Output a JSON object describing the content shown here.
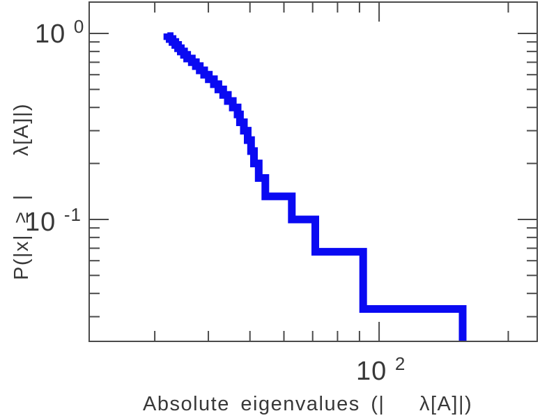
{
  "chart_data": {
    "type": "line",
    "subtype": "empirical-ccdf-step",
    "title": "",
    "n_points": 30,
    "x": [
      32.1,
      32.5,
      33.0,
      33.5,
      34.0,
      34.5,
      35.1,
      35.7,
      36.6,
      37.4,
      38.2,
      39.1,
      40.1,
      41.2,
      42.2,
      43.3,
      44.4,
      45.6,
      46.8,
      47.4,
      48.4,
      49.4,
      50.3,
      51.1,
      52.4,
      54.3,
      62.6,
      71.0,
      91.8,
      156.6
    ],
    "y": [
      1.0,
      0.967,
      0.933,
      0.9,
      0.867,
      0.833,
      0.8,
      0.767,
      0.733,
      0.7,
      0.667,
      0.633,
      0.6,
      0.567,
      0.533,
      0.5,
      0.467,
      0.433,
      0.4,
      0.367,
      0.333,
      0.3,
      0.267,
      0.233,
      0.2,
      0.167,
      0.133,
      0.1,
      0.067,
      0.033
    ],
    "x_axis": {
      "scale": "log",
      "min": 21.1,
      "max": 233.6,
      "major_ticks": [
        100
      ],
      "minor_ticks": [
        30,
        40,
        50,
        60,
        70,
        80,
        90,
        200
      ],
      "tick_labels": [
        {
          "base": "10",
          "exp": "2"
        }
      ],
      "label_part1": "Absolute eigenvalues (|",
      "label_part2": "λ[A]|)"
    },
    "y_axis": {
      "scale": "log",
      "min": 0.0221,
      "max": 1.474,
      "major_ticks": [
        1,
        0.1
      ],
      "minor_ticks": [
        0.9,
        0.8,
        0.7,
        0.6,
        0.5,
        0.4,
        0.3,
        0.2,
        0.09,
        0.08,
        0.07,
        0.06,
        0.05,
        0.04,
        0.03
      ],
      "tick_labels": [
        {
          "base": "10",
          "exp": "0"
        },
        {
          "base": "10",
          "exp": "-1"
        }
      ],
      "label_part1": "P(|x| ≥ |",
      "label_part2": "λ[A]|)"
    },
    "line_color": "#0a0af2",
    "line_width": 11,
    "frame_color": "#4a4a4a",
    "frame_width": 2,
    "tick_len_minor": 15,
    "tick_len_major": 28,
    "grid": false,
    "legend": "none",
    "background": "#ffffff"
  }
}
